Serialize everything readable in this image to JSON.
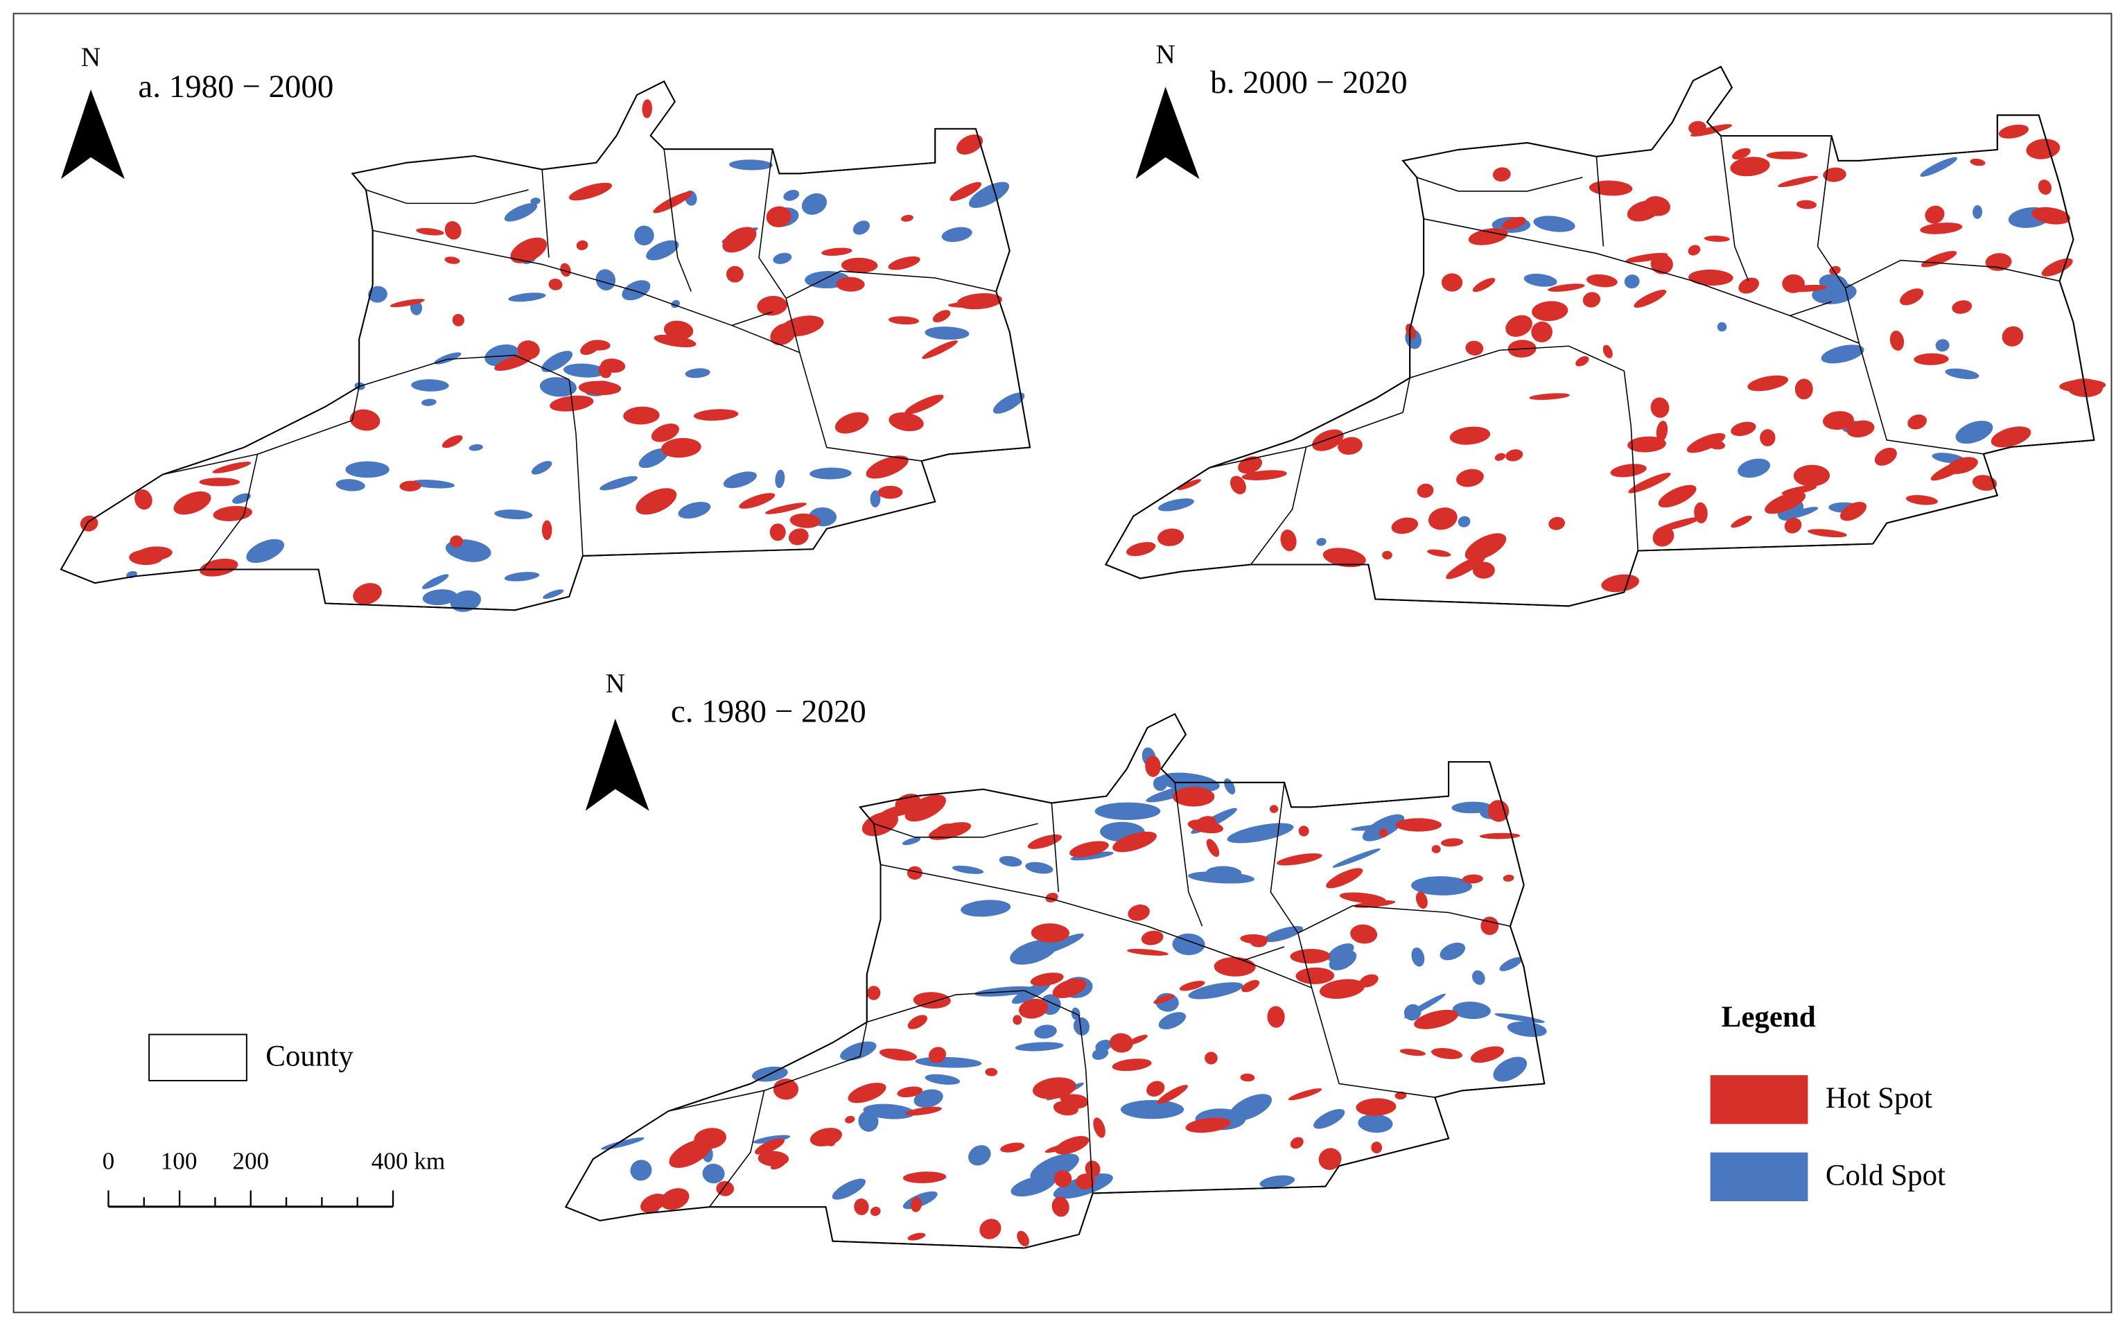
{
  "panels": [
    {
      "label": "a. 1980 − 2000",
      "north": "N"
    },
    {
      "label": "b. 2000 − 2020",
      "north": "N"
    },
    {
      "label": "c. 1980 − 2020",
      "north": "N"
    }
  ],
  "county_legend": "County",
  "scale_bar": {
    "labels": [
      "0",
      "100",
      "200",
      "400 km"
    ]
  },
  "legend": {
    "title": "Legend",
    "items": [
      {
        "label": "Hot Spot",
        "color": "#d7302a"
      },
      {
        "label": "Cold Spot",
        "color": "#4a78c0"
      }
    ]
  }
}
